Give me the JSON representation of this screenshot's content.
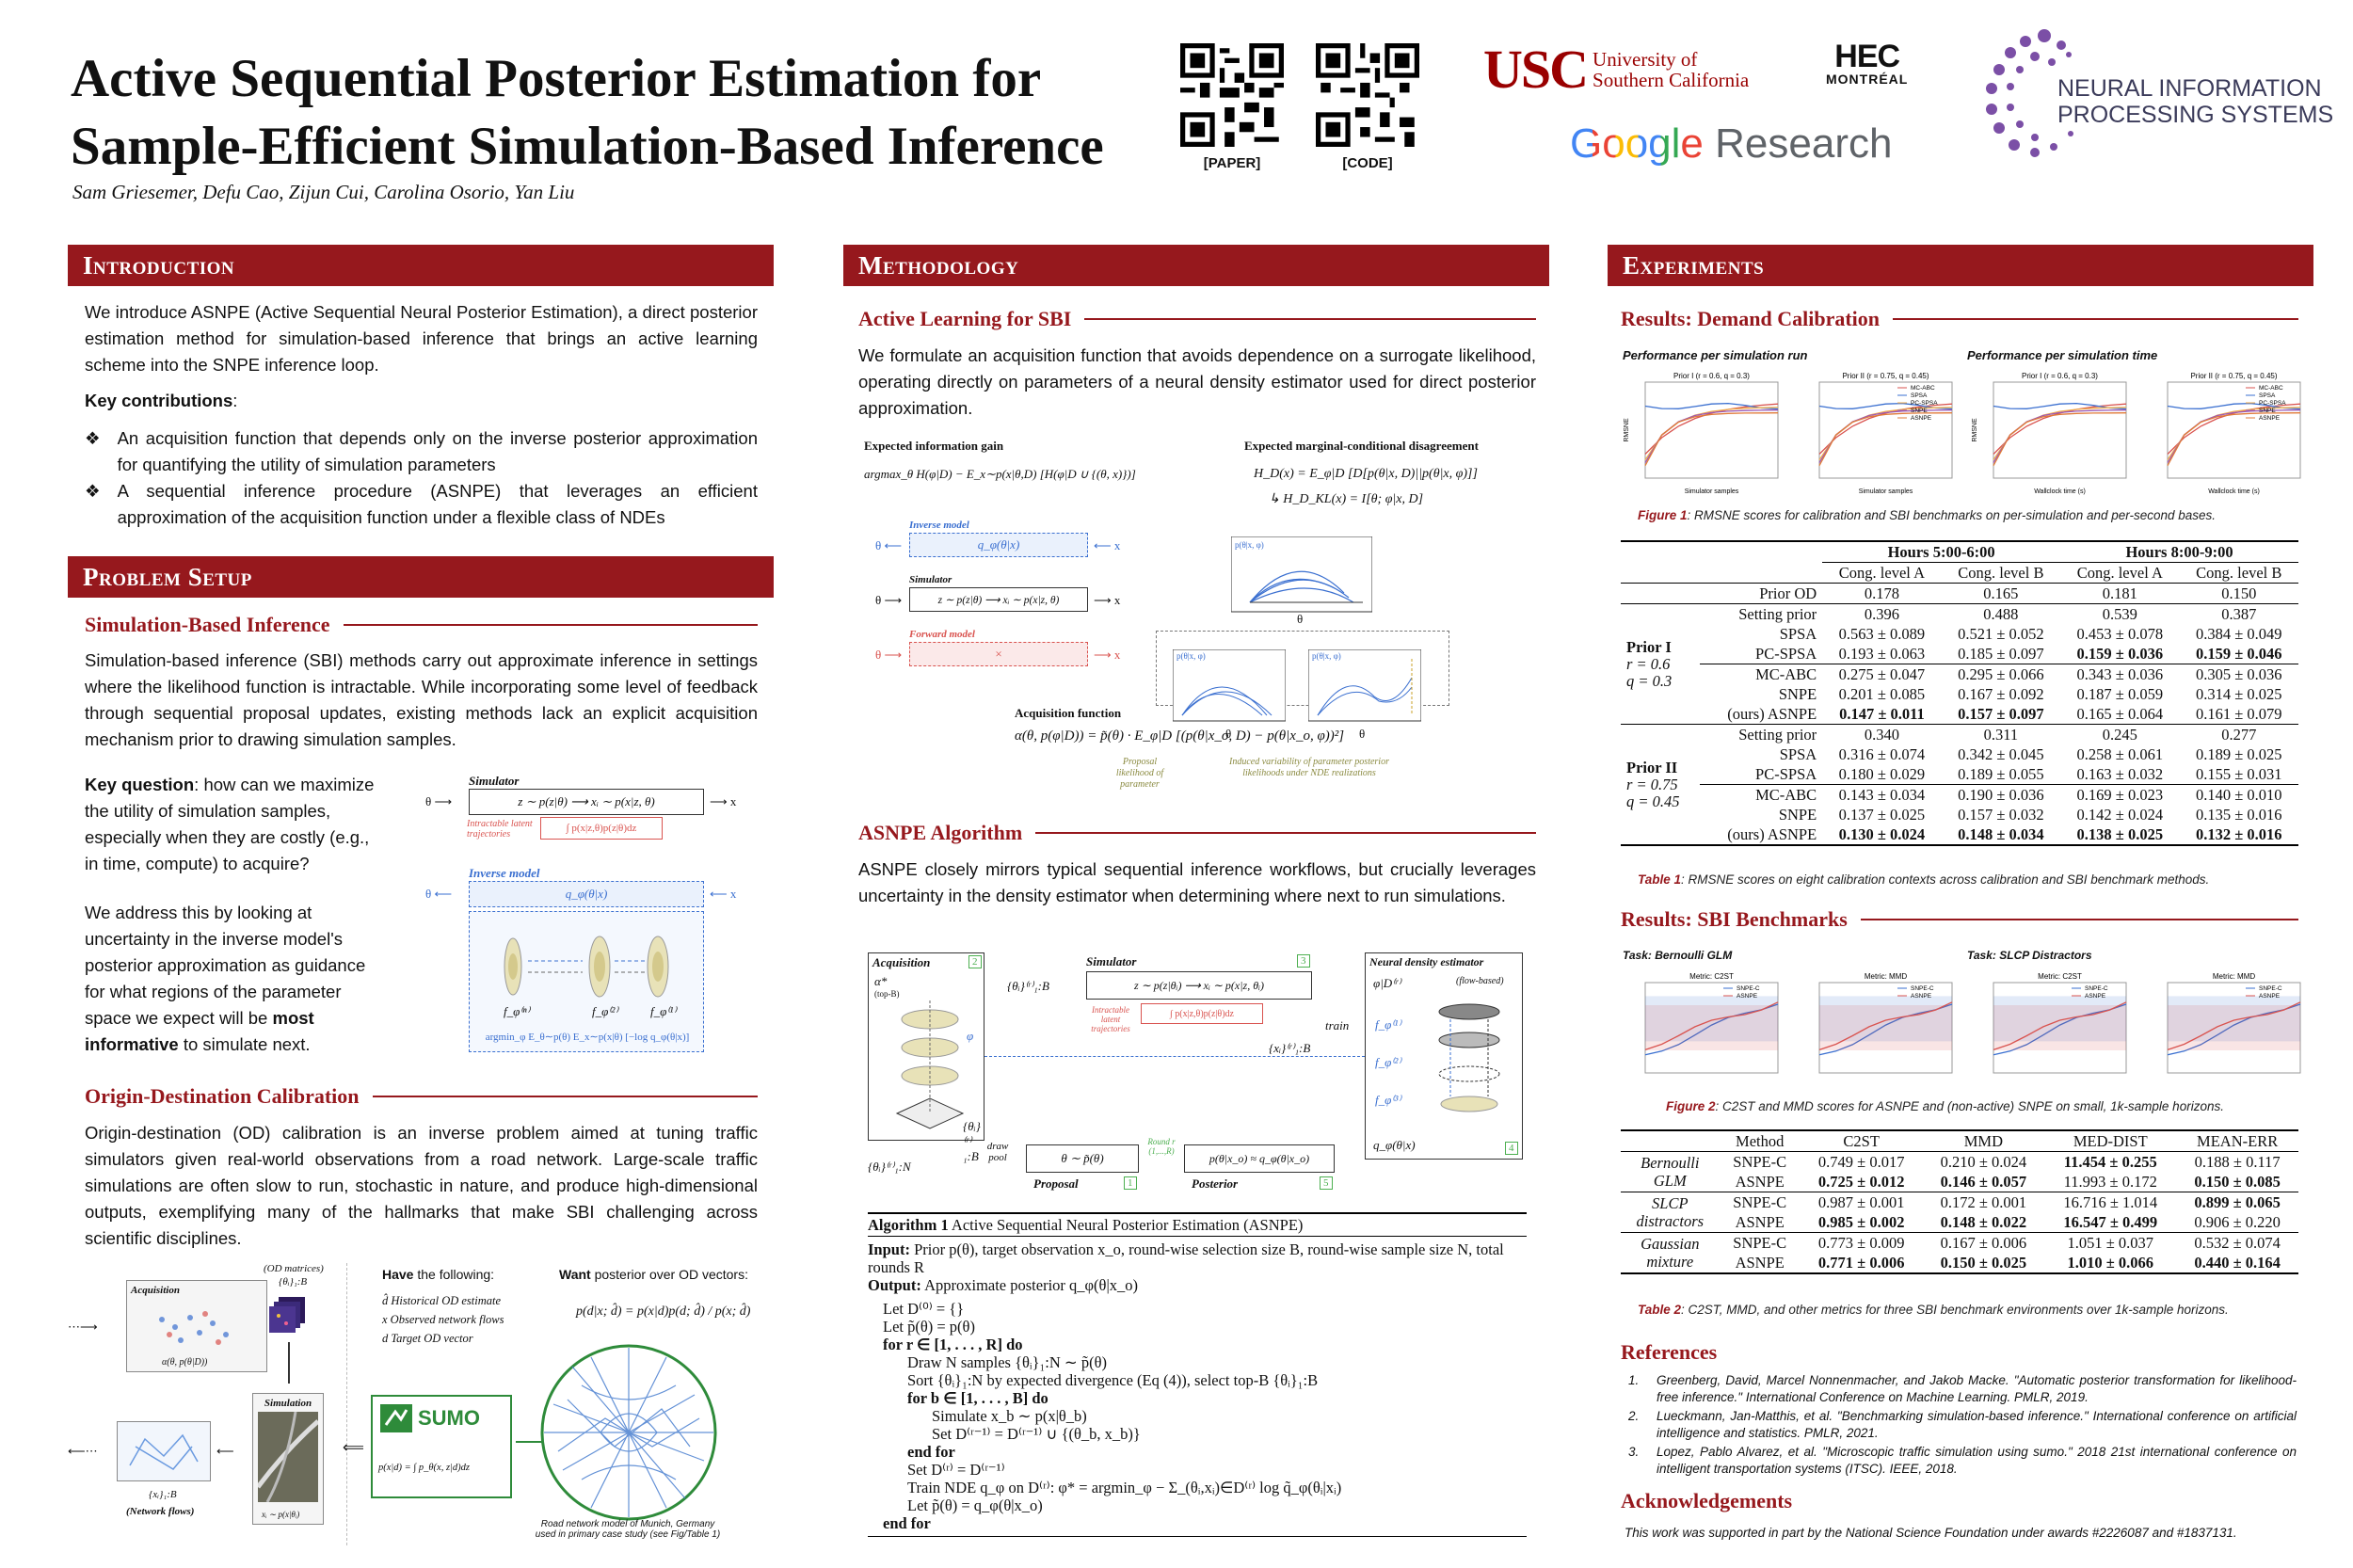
{
  "header": {
    "title_line1": "Active Sequential Posterior Estimation for",
    "title_line2": "Sample-Efficient Simulation-Based Inference",
    "authors": "Sam Griesemer, Defu Cao, Zijun Cui, Carolina Osorio, Yan Liu",
    "qr_paper_label": "[PAPER]",
    "qr_code_label": "[CODE]",
    "logos": {
      "usc_mark": "USC",
      "usc_line1": "University of",
      "usc_line2": "Southern California",
      "hec_line1": "HEC",
      "hec_line2": "MONTRÉAL",
      "google_word": "Google",
      "google_research": "Research",
      "neurips_line1": "NEURAL INFORMATION",
      "neurips_line2": "PROCESSING SYSTEMS"
    }
  },
  "intro": {
    "heading": "Introduction",
    "para": "We introduce ASNPE (Active Sequential Neural Posterior Estimation), a direct posterior estimation method for simulation-based inference that brings an active learning scheme into the SNPE inference loop.",
    "contrib_label": "Key contributions",
    "contrib_colon": ":",
    "bullets": [
      "An acquisition function that depends only on the inverse posterior approximation for quantifying the utility of simulation parameters",
      "A sequential inference procedure (ASNPE) that leverages an efficient approximation of the acquisition function under a flexible class of NDEs"
    ]
  },
  "problem": {
    "heading": "Problem Setup",
    "sbi_heading": "Simulation-Based Inference",
    "sbi_para": "Simulation-based inference (SBI) methods carry out approximate inference in settings where the likelihood function is intractable. While incorporating some level of feedback through sequential proposal updates, existing methods lack an explicit acquisition mechanism prior to drawing simulation samples.",
    "kq_label": "Key question",
    "kq_text": ": how can we maximize the utility of simulation samples, especially when they are costly (e.g., in time, compute) to acquire?",
    "address_text": "We address this by looking at uncertainty in the inverse model's posterior approximation as guidance for what regions of the parameter space we expect will be ",
    "address_bold": "most informative",
    "address_end": " to simulate next.",
    "fig_simulator": "Simulator",
    "fig_sim_eq": "z ∼ p(z|θ) ⟶ xᵢ ∼ p(x|z, θ)",
    "fig_intractable": "Intractable latent trajectories",
    "fig_integral": "∫ p(x|z,θ)p(z|θ)dz",
    "fig_inverse": "Inverse model",
    "fig_inv_eq": "q_φ(θ|x)",
    "fig_f3": "f_φ⁽ⁿ⁾",
    "fig_f2": "f_φ⁽²⁾",
    "fig_f1": "f_φ⁽¹⁾",
    "fig_argmin": "argmin_φ E_θ∼p(θ) E_x∼p(x|θ) [−log q_φ(θ|x)]",
    "od_heading": "Origin-Destination Calibration",
    "od_para": "Origin-destination (OD) calibration is an inverse problem aimed at tuning traffic simulators given real-world observations from a road network. Large-scale traffic simulations are often slow to run, stochastic in nature, and produce high-dimensional outputs, exemplifying many of the hallmarks that make SBI challenging across scientific disciplines.",
    "od_fig": {
      "acquisition": "Acquisition",
      "od_matrices": "(OD matrices)",
      "theta_b": "{θᵢ}₁:B",
      "alpha": "α(θ, p(θ|D))",
      "simulation": "Simulation",
      "sim_sample": "xᵢ ∼ p(x|θᵢ)",
      "xi": "{xᵢ}₁:B",
      "network_flows": "(Network flows)",
      "have_bold": "Have",
      "have_rest": " the following:",
      "have_items": [
        "d̂  Historical OD estimate",
        "x  Observed network flows",
        "d  Target OD vector"
      ],
      "want_bold": "Want",
      "want_rest": " posterior over OD vectors:",
      "bayes": "p(d|x; d̂) = p(x|d)p(d; d̂) / p(x; d̂)",
      "sumo": "SUMO",
      "sumo_eq": "p(x|d) = ∫ p_θ(x, z|d)dz",
      "road_caption_1": "Road network model of Munich, Germany",
      "road_caption_2": "used in primary case study (see Fig/Table 1)"
    }
  },
  "method": {
    "heading": "Methodology",
    "al_heading": "Active Learning for SBI",
    "al_para": "We formulate an acquisition function that avoids dependence on a surrogate likelihood, operating directly on parameters of a neural density estimator used for direct posterior approximation.",
    "fig1": {
      "eig": "Expected information gain",
      "eig_eq": "argmax_θ H(φ|D) − E_x∼p(x|θ,D) [H(φ|D ∪ {(θ, x)})]",
      "emcd": "Expected marginal-conditional disagreement",
      "emcd_eq": "H_D(x) = E_φ|D [D[p(θ|x, D)||p(θ|x, φ)]]",
      "emcd_eq2": "↳ H_D_KL(x) = I[θ; φ|x, D]",
      "inverse": "Inverse model",
      "inverse_eq": "q_φ(θ|x)",
      "simulator": "Simulator",
      "sim_eq": "z ∼ p(z|θ) ⟶ xᵢ ∼ p(x|z, θ)",
      "forward": "Forward model",
      "acq": "Acquisition function",
      "acq_eq": "α(θ, p(φ|D)) = p̃(θ) · E_φ|D [(p(θ|x_o, D) − p(θ|x_o, φ))²]",
      "note1": "Proposal likelihood of parameter",
      "note2": "Induced variability of parameter posterior likelihoods under NDE realizations",
      "theta": "θ",
      "x": "x",
      "p_label": "p(θ|x, φ)"
    },
    "asnpe_heading": "ASNPE Algorithm",
    "asnpe_para": "ASNPE closely mirrors typical sequential inference workflows, but crucially leverages uncertainty in the density estimator when determining where next to run simulations.",
    "fig2": {
      "acquisition": "Acquisition",
      "n2": "2",
      "simulator": "Simulator",
      "n3": "3",
      "nde": "Neural density estimator",
      "flow": "(flow-based)",
      "alpha": "α*",
      "topb": "(top-B)",
      "theta_b": "{θᵢ}⁽ʳ⁾₁:B",
      "sim_eq": "z ∼ p(z|θᵢ) ⟶ xᵢ ∼ p(x|z, θᵢ)",
      "intractable": "Intractable latent trajectories",
      "integral": "∫ p(x|z,θ)p(z|θ)dz",
      "phi_d": "φ|D⁽ʳ⁾",
      "train": "train",
      "xi_b": "{xᵢ}⁽ʳ⁾₁:B",
      "theta_n": "{θᵢ}⁽ʳ⁾₁:N",
      "draw_pool": "draw pool",
      "proposal_eq": "θ ∼ p̃(θ)",
      "proposal": "Proposal",
      "n1": "1",
      "round": "Round r (1,...,R)",
      "posterior_eq": "p(θ|x_o) ≈ q_φ(θ|x_o)",
      "posterior": "Posterior",
      "n5": "5",
      "q_eq": "q_φ(θ|x)",
      "n4": "4",
      "phi": "φ"
    },
    "algorithm": {
      "title_bold": "Algorithm 1",
      "title": " Active Sequential Neural Posterior Estimation (ASNPE)",
      "input_bold": "Input:",
      "input": " Prior p(θ), target observation x_o, round-wise selection size B, round-wise sample size N, total rounds R",
      "output_bold": "Output:",
      "output": " Approximate posterior q_φ(θ|x_o)",
      "lines": [
        {
          "indent": 0,
          "text": "Let D⁽⁰⁾ = {}"
        },
        {
          "indent": 0,
          "text": "Let p̃(θ) = p(θ)"
        },
        {
          "indent": 0,
          "text": "for r ∈ [1, . . . , R] do"
        },
        {
          "indent": 1,
          "text": "Draw N samples {θᵢ}₁:N ∼ p̃(θ)"
        },
        {
          "indent": 1,
          "text": "Sort {θᵢ}₁:N by expected divergence (Eq (4)), select top-B {θᵢ}₁:B"
        },
        {
          "indent": 1,
          "text": "for b ∈ [1, . . . , B] do"
        },
        {
          "indent": 2,
          "text": "Simulate x_b ∼ p(x|θ_b)"
        },
        {
          "indent": 2,
          "text": "Set D⁽ʳ⁻¹⁾ = D⁽ʳ⁻¹⁾ ∪ {(θ_b, x_b)}"
        },
        {
          "indent": 1,
          "text": "end for"
        },
        {
          "indent": 1,
          "text": "Set D⁽ʳ⁾ = D⁽ʳ⁻¹⁾"
        },
        {
          "indent": 1,
          "text": "Train NDE q_φ on D⁽ʳ⁾: φ* = argmin_φ − Σ_(θᵢ,xᵢ)∈D⁽ʳ⁾ log q̃_φ(θᵢ|xᵢ)"
        },
        {
          "indent": 1,
          "text": "Let p̃(θ) = q_φ(θ|x_o)"
        },
        {
          "indent": 0,
          "text": "end for"
        }
      ]
    }
  },
  "experiments": {
    "heading": "Experiments",
    "demand_heading": "Results: Demand Calibration",
    "perf_run": "Performance per simulation run",
    "perf_time": "Performance per simulation time",
    "fig1_caption_label": "Figure 1",
    "fig1_caption": ": RMSNE scores for calibration and SBI benchmarks on per-simulation and per-second bases.",
    "table1": {
      "hours_a": "Hours 5:00-6:00",
      "hours_b": "Hours 8:00-9:00",
      "cols": [
        "Cong. level A",
        "Cong. level B",
        "Cong. level A",
        "Cong. level B"
      ],
      "prior_od": {
        "label": "Prior OD",
        "values": [
          "0.178",
          "0.165",
          "0.181",
          "0.150"
        ]
      },
      "groups": [
        {
          "name": "Prior I",
          "r": "r = 0.6",
          "q": "q = 0.3",
          "rows": [
            {
              "method": "Setting prior",
              "values": [
                "0.396",
                "0.488",
                "0.539",
                "0.387"
              ],
              "bold": [
                false,
                false,
                false,
                false
              ]
            },
            {
              "method": "SPSA",
              "values": [
                "0.563 ± 0.089",
                "0.521 ± 0.052",
                "0.453 ± 0.078",
                "0.384 ± 0.049"
              ],
              "bold": [
                false,
                false,
                false,
                false
              ]
            },
            {
              "method": "PC-SPSA",
              "values": [
                "0.193 ± 0.063",
                "0.185 ± 0.097",
                "0.159 ± 0.036",
                "0.159 ± 0.046"
              ],
              "bold": [
                false,
                false,
                true,
                true
              ]
            },
            {
              "method": "MC-ABC",
              "values": [
                "0.275 ± 0.047",
                "0.295 ± 0.066",
                "0.343 ± 0.036",
                "0.305 ± 0.036"
              ],
              "bold": [
                false,
                false,
                false,
                false
              ]
            },
            {
              "method": "SNPE",
              "values": [
                "0.201 ± 0.085",
                "0.167 ± 0.092",
                "0.187 ± 0.059",
                "0.314 ± 0.025"
              ],
              "bold": [
                false,
                false,
                false,
                false
              ]
            },
            {
              "method": "(ours) ASNPE",
              "values": [
                "0.147 ± 0.011",
                "0.157 ± 0.097",
                "0.165 ± 0.064",
                "0.161 ± 0.079"
              ],
              "bold": [
                true,
                true,
                false,
                false
              ]
            }
          ]
        },
        {
          "name": "Prior II",
          "r": "r = 0.75",
          "q": "q = 0.45",
          "rows": [
            {
              "method": "Setting prior",
              "values": [
                "0.340",
                "0.311",
                "0.245",
                "0.277"
              ],
              "bold": [
                false,
                false,
                false,
                false
              ]
            },
            {
              "method": "SPSA",
              "values": [
                "0.316 ± 0.074",
                "0.342 ± 0.045",
                "0.258 ± 0.061",
                "0.189 ± 0.025"
              ],
              "bold": [
                false,
                false,
                false,
                false
              ]
            },
            {
              "method": "PC-SPSA",
              "values": [
                "0.180 ± 0.029",
                "0.189 ± 0.055",
                "0.163 ± 0.032",
                "0.155 ± 0.031"
              ],
              "bold": [
                false,
                false,
                false,
                false
              ]
            },
            {
              "method": "MC-ABC",
              "values": [
                "0.143 ± 0.034",
                "0.190 ± 0.036",
                "0.169 ± 0.023",
                "0.140 ± 0.010"
              ],
              "bold": [
                false,
                false,
                false,
                false
              ]
            },
            {
              "method": "SNPE",
              "values": [
                "0.137 ± 0.025",
                "0.157 ± 0.032",
                "0.142 ± 0.024",
                "0.135 ± 0.016"
              ],
              "bold": [
                false,
                false,
                false,
                false
              ]
            },
            {
              "method": "(ours) ASNPE",
              "values": [
                "0.130 ± 0.024",
                "0.148 ± 0.034",
                "0.138 ± 0.025",
                "0.132 ± 0.016"
              ],
              "bold": [
                true,
                true,
                true,
                true
              ]
            }
          ]
        }
      ]
    },
    "table1_caption_label": "Table 1",
    "table1_caption": ": RMSNE scores on eight calibration contexts across calibration and SBI benchmark methods.",
    "bench_heading": "Results: SBI Benchmarks",
    "task1": "Task: Bernoulli GLM",
    "task2": "Task: SLCP Distractors",
    "fig2_caption_label": "Figure 2",
    "fig2_caption": ": C2ST and MMD scores for ASNPE and (non-active) SNPE on small, 1k-sample horizons.",
    "table2": {
      "cols": [
        "Method",
        "C2ST",
        "MMD",
        "MED-DIST",
        "MEAN-ERR"
      ],
      "groups": [
        {
          "name_line1": "Bernoulli",
          "name_line2": "GLM",
          "rows": [
            {
              "method": "SNPE-C",
              "values": [
                "0.749 ± 0.017",
                "0.210 ± 0.024",
                "11.454 ± 0.255",
                "0.188 ± 0.117"
              ],
              "bold": [
                false,
                false,
                true,
                false
              ]
            },
            {
              "method": "ASNPE",
              "values": [
                "0.725 ± 0.012",
                "0.146 ± 0.057",
                "11.993 ± 0.172",
                "0.150 ± 0.085"
              ],
              "bold": [
                true,
                true,
                false,
                true
              ]
            }
          ]
        },
        {
          "name_line1": "SLCP",
          "name_line2": "distractors",
          "rows": [
            {
              "method": "SNPE-C",
              "values": [
                "0.987 ± 0.001",
                "0.172 ± 0.001",
                "16.716 ± 1.014",
                "0.899 ± 0.065"
              ],
              "bold": [
                false,
                false,
                false,
                true
              ]
            },
            {
              "method": "ASNPE",
              "values": [
                "0.985 ± 0.002",
                "0.148 ± 0.022",
                "16.547 ± 0.499",
                "0.906 ± 0.220"
              ],
              "bold": [
                true,
                true,
                true,
                false
              ]
            }
          ]
        },
        {
          "name_line1": "Gaussian",
          "name_line2": "mixture",
          "rows": [
            {
              "method": "SNPE-C",
              "values": [
                "0.773 ± 0.009",
                "0.167 ± 0.006",
                "1.051 ± 0.037",
                "0.532 ± 0.074"
              ],
              "bold": [
                false,
                false,
                false,
                false
              ]
            },
            {
              "method": "ASNPE",
              "values": [
                "0.771 ± 0.006",
                "0.150 ± 0.025",
                "1.010 ± 0.066",
                "0.440 ± 0.164"
              ],
              "bold": [
                true,
                true,
                true,
                true
              ]
            }
          ]
        }
      ]
    },
    "table2_caption_label": "Table 2",
    "table2_caption": ": C2ST, MMD, and other metrics for three SBI benchmark environments over 1k-sample horizons.",
    "refs_heading": "References",
    "refs": [
      "Greenberg, David, Marcel Nonnenmacher, and Jakob Macke. \"Automatic posterior transformation for likelihood-free inference.\" International Conference on Machine Learning. PMLR, 2019.",
      "Lueckmann, Jan-Matthis, et al. \"Benchmarking simulation-based inference.\" International conference on artificial intelligence and statistics. PMLR, 2021.",
      "Lopez, Pablo Alvarez, et al. \"Microscopic traffic simulation using sumo.\" 2018 21st international conference on intelligent transportation systems (ITSC). IEEE, 2018."
    ],
    "ack_heading": "Acknowledgements",
    "ack": "This work was supported in part by the National Science Foundation under awards #2226087 and #1837131."
  },
  "chart_data": [
    {
      "type": "line",
      "title": "Prior I (r = 0.6, q = 0.3)",
      "xlabel": "Simulator samples",
      "ylabel": "RMSNE",
      "legend": [
        "MC-ABC",
        "SPSA",
        "PC-SPSA",
        "SNPE",
        "ASNPE"
      ]
    },
    {
      "type": "line",
      "title": "Prior II (r = 0.75, q = 0.45)",
      "xlabel": "Simulator samples",
      "ylabel": "",
      "legend": [
        "MC-ABC",
        "SPSA",
        "PC-SPSA",
        "SNPE",
        "ASNPE"
      ]
    },
    {
      "type": "line",
      "title": "Prior I (r = 0.6, q = 0.3)",
      "xlabel": "Wallclock time (s)",
      "ylabel": "RMSNE",
      "legend": [
        "MC-ABC",
        "SPSA",
        "PC-SPSA",
        "SNPE",
        "ASNPE"
      ]
    },
    {
      "type": "line",
      "title": "Prior II (r = 0.75, q = 0.45)",
      "xlabel": "Wallclock time (s)",
      "ylabel": "",
      "legend": [
        "MC-ABC",
        "SPSA",
        "PC-SPSA",
        "SNPE",
        "ASNPE"
      ]
    },
    {
      "type": "line",
      "title": "Metric: C2ST",
      "xlabel": "",
      "ylabel": "",
      "legend": [
        "SNPE-C",
        "ASNPE"
      ]
    },
    {
      "type": "line",
      "title": "Metric: MMD",
      "xlabel": "",
      "ylabel": "",
      "legend": [
        "SNPE-C",
        "ASNPE"
      ]
    },
    {
      "type": "line",
      "title": "Metric: C2ST",
      "xlabel": "",
      "ylabel": "",
      "legend": [
        "SNPE-C",
        "ASNPE"
      ]
    },
    {
      "type": "line",
      "title": "Metric: MMD",
      "xlabel": "",
      "ylabel": "",
      "legend": [
        "SNPE-C",
        "ASNPE"
      ]
    }
  ],
  "colors": {
    "accent": "#96181d",
    "blue": "#3a6fd0",
    "red": "#d9534f",
    "green": "#4caf50"
  }
}
